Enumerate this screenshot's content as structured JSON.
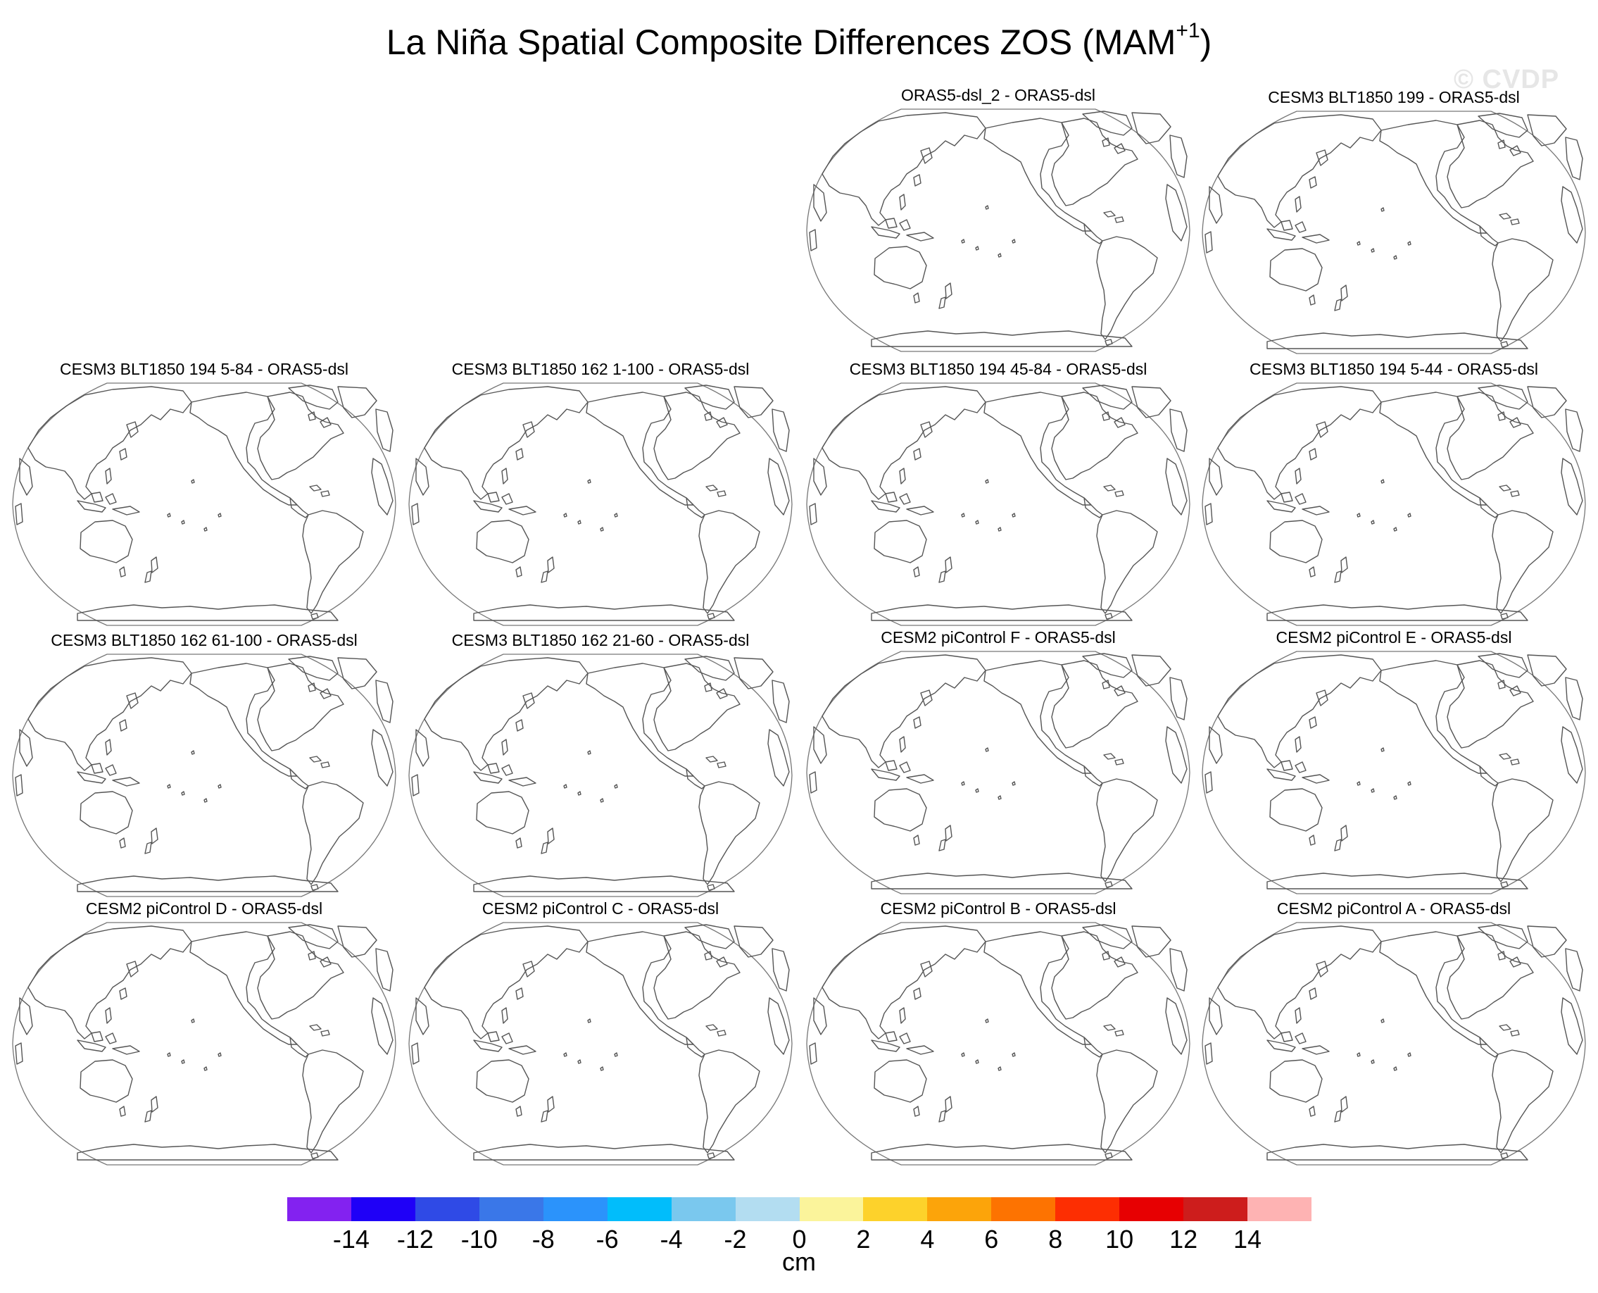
{
  "figure": {
    "title_main": "La Niña Spatial Composite Differences ZOS (MAM",
    "title_sup": "+1",
    "title_end": ")",
    "watermark": "© CVDP"
  },
  "panels": [
    {
      "title": "ORAS5-dsl_2 - ORAS5-dsl"
    },
    {
      "title": "CESM3 BLT1850 199 - ORAS5-dsl"
    },
    {
      "title": "CESM3 BLT1850 194 5-84 - ORAS5-dsl"
    },
    {
      "title": "CESM3 BLT1850 162 1-100 - ORAS5-dsl"
    },
    {
      "title": "CESM3 BLT1850 194 45-84 - ORAS5-dsl"
    },
    {
      "title": "CESM3 BLT1850 194 5-44 - ORAS5-dsl"
    },
    {
      "title": "CESM3 BLT1850 162 61-100 - ORAS5-dsl"
    },
    {
      "title": "CESM3 BLT1850 162 21-60 - ORAS5-dsl"
    },
    {
      "title": "CESM2 piControl F - ORAS5-dsl"
    },
    {
      "title": "CESM2 piControl E - ORAS5-dsl"
    },
    {
      "title": "CESM2 piControl D - ORAS5-dsl"
    },
    {
      "title": "CESM2 piControl C - ORAS5-dsl"
    },
    {
      "title": "CESM2 piControl B - ORAS5-dsl"
    },
    {
      "title": "CESM2 piControl A - ORAS5-dsl"
    }
  ],
  "colorbar": {
    "colors": [
      "#8322f0",
      "#1f00f7",
      "#2f4ae6",
      "#3a77e8",
      "#2b93fb",
      "#01bdfb",
      "#7ac8ee",
      "#b3ddf1",
      "#fbf49b",
      "#fdd22b",
      "#fca40a",
      "#fd7301",
      "#fd2e02",
      "#e70002",
      "#cd1d1c",
      "#feb3b3"
    ],
    "labels": [
      "-14",
      "-12",
      "-10",
      "-8",
      "-6",
      "-4",
      "-2",
      "0",
      "2",
      "4",
      "6",
      "8",
      "10",
      "12",
      "14"
    ],
    "units": "cm"
  }
}
